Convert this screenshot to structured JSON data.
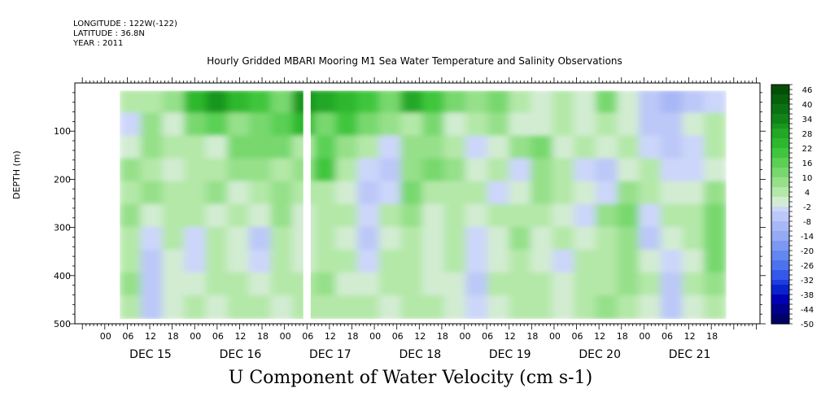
{
  "header": {
    "longitude": "LONGITUDE : 122W(-122)",
    "latitude": "LATITUDE : 36.8N",
    "year": "YEAR : 2011"
  },
  "title": "Hourly Gridded MBARI Mooring M1 Sea Water Temperature and Salinity Observations",
  "ylabel": "DEPTH (m)",
  "variable_label": "U Component of Water Velocity (cm s-1)",
  "colors": {
    "palette_negative_to_positive": [
      "#000066",
      "#00008c",
      "#0000b4",
      "#0a22cc",
      "#1e3ce0",
      "#3458ea",
      "#4c72ee",
      "#6486f0",
      "#7c98f2",
      "#94aaf4",
      "#a8b8f6",
      "#bcc8f8",
      "#ccd6fa",
      "#d2ecd2",
      "#b4e8a8",
      "#96e08a",
      "#78d86e",
      "#5ad054",
      "#40c63e",
      "#2eb82e",
      "#22a826",
      "#18961e",
      "#108418",
      "#0a7212",
      "#06600c",
      "#044e08"
    ]
  },
  "chart_data": {
    "type": "heatmap",
    "title": "Hourly Gridded MBARI Mooring M1 Sea Water Temperature and Salinity Observations",
    "xlabel": "",
    "ylabel": "DEPTH (m)",
    "colorbar_label": "U Component of Water Velocity (cm s-1)",
    "ylim": [
      500,
      0
    ],
    "y_ticks": [
      "100",
      "200",
      "300",
      "400",
      "500"
    ],
    "y_tick_values": [
      100,
      200,
      300,
      400,
      500
    ],
    "x_hour_tick_labels": [
      "00",
      "06",
      "12",
      "18",
      "00",
      "06",
      "12",
      "18",
      "00",
      "06",
      "12",
      "18",
      "00",
      "06",
      "12",
      "18",
      "00",
      "06",
      "12",
      "18",
      "00",
      "06",
      "12",
      "18",
      "00",
      "06",
      "12",
      "18"
    ],
    "x_day_labels": [
      "DEC 15",
      "DEC 16",
      "DEC 17",
      "DEC 18",
      "DEC 19",
      "DEC 20",
      "DEC 21"
    ],
    "data_start_hour": 4,
    "data_end_hour": 166,
    "depth_range": [
      16,
      490
    ],
    "colorbar_levels": [
      48,
      46,
      44,
      42,
      40,
      38,
      36,
      34,
      32,
      30,
      28,
      26,
      24,
      22,
      20,
      18,
      16,
      14,
      12,
      10,
      8,
      6,
      4,
      2,
      0,
      -2,
      -4,
      -6,
      -8,
      -10,
      -12,
      -14,
      -16,
      -18,
      -20,
      -22,
      -24,
      -26,
      -28,
      -30,
      -32,
      -34,
      -36,
      -38,
      -40,
      -42,
      -44,
      -46,
      -48,
      -50
    ],
    "colorbar_labels": [
      "46",
      "40",
      "34",
      "28",
      "22",
      "16",
      "10",
      "4",
      "-2",
      "-8",
      "-14",
      "-20",
      "-26",
      "-32",
      "-38",
      "-44",
      "-50"
    ],
    "columns_hour": [
      4,
      10,
      16,
      22,
      28,
      34,
      40,
      46,
      52,
      58,
      64,
      70,
      76,
      82,
      88,
      94,
      100,
      106,
      112,
      118,
      124,
      130,
      136,
      142,
      148,
      154,
      160,
      166
    ],
    "rows_depth": [
      30,
      80,
      130,
      180,
      230,
      280,
      330,
      380,
      430,
      480
    ],
    "values": [
      [
        4,
        6,
        8,
        22,
        30,
        24,
        18,
        12,
        30,
        28,
        22,
        18,
        12,
        26,
        20,
        14,
        8,
        12,
        6,
        2,
        4,
        2,
        12,
        2,
        -8,
        -10,
        -6,
        -2
      ],
      [
        -4,
        8,
        2,
        12,
        16,
        8,
        14,
        16,
        24,
        12,
        18,
        14,
        10,
        6,
        14,
        2,
        6,
        10,
        2,
        0,
        6,
        2,
        6,
        0,
        -6,
        -8,
        2,
        4
      ],
      [
        2,
        10,
        6,
        4,
        2,
        12,
        14,
        14,
        4,
        16,
        10,
        4,
        -4,
        8,
        10,
        4,
        -2,
        2,
        8,
        12,
        2,
        6,
        0,
        4,
        -2,
        -8,
        -4,
        6
      ],
      [
        8,
        4,
        2,
        6,
        4,
        8,
        10,
        6,
        8,
        18,
        6,
        -4,
        -6,
        10,
        12,
        8,
        2,
        6,
        -4,
        10,
        4,
        -2,
        -6,
        0,
        4,
        -4,
        -2,
        2
      ],
      [
        6,
        10,
        4,
        4,
        8,
        2,
        6,
        8,
        4,
        6,
        2,
        -6,
        -4,
        12,
        6,
        4,
        6,
        -2,
        2,
        8,
        6,
        2,
        -2,
        10,
        6,
        0,
        2,
        8
      ],
      [
        8,
        2,
        6,
        4,
        2,
        6,
        2,
        8,
        2,
        4,
        4,
        -4,
        4,
        8,
        2,
        6,
        2,
        4,
        4,
        6,
        2,
        -2,
        8,
        12,
        -4,
        4,
        6,
        12
      ],
      [
        4,
        -2,
        4,
        -4,
        6,
        2,
        -6,
        6,
        2,
        4,
        2,
        -6,
        2,
        6,
        2,
        4,
        -4,
        2,
        8,
        2,
        4,
        2,
        6,
        10,
        -6,
        2,
        4,
        14
      ],
      [
        6,
        -6,
        2,
        -4,
        4,
        2,
        -4,
        4,
        2,
        6,
        4,
        -4,
        6,
        4,
        2,
        4,
        -4,
        2,
        6,
        2,
        -2,
        4,
        6,
        8,
        2,
        -4,
        2,
        12
      ],
      [
        8,
        -8,
        2,
        2,
        4,
        4,
        2,
        4,
        4,
        8,
        2,
        2,
        4,
        4,
        2,
        2,
        -6,
        4,
        4,
        4,
        2,
        6,
        4,
        8,
        4,
        -6,
        4,
        8
      ],
      [
        6,
        -6,
        2,
        4,
        2,
        6,
        4,
        2,
        6,
        6,
        4,
        4,
        2,
        6,
        4,
        2,
        -4,
        2,
        4,
        6,
        2,
        4,
        8,
        6,
        2,
        -8,
        2,
        6
      ]
    ],
    "gap_hours": [
      53,
      55
    ],
    "legend": "colorbar at right"
  }
}
